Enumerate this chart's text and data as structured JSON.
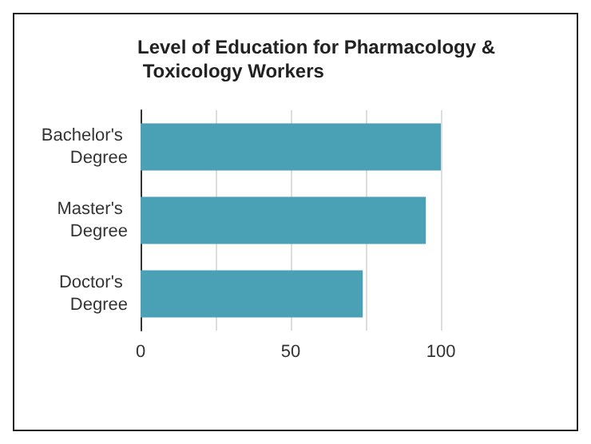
{
  "chart_data": {
    "type": "bar",
    "orientation": "horizontal",
    "title": "Level of Education for Pharmacology & Toxicology Workers",
    "categories": [
      "Bachelor's Degree",
      "Master's Degree",
      "Doctor's Degree"
    ],
    "values": [
      100,
      95,
      74
    ],
    "color": "#4aa0b5",
    "xlim": [
      0,
      100
    ],
    "xticks": [
      0,
      {
        "value": 25,
        "label": null
      },
      50,
      {
        "value": 75,
        "label": null
      },
      100
    ],
    "grid": "x"
  }
}
